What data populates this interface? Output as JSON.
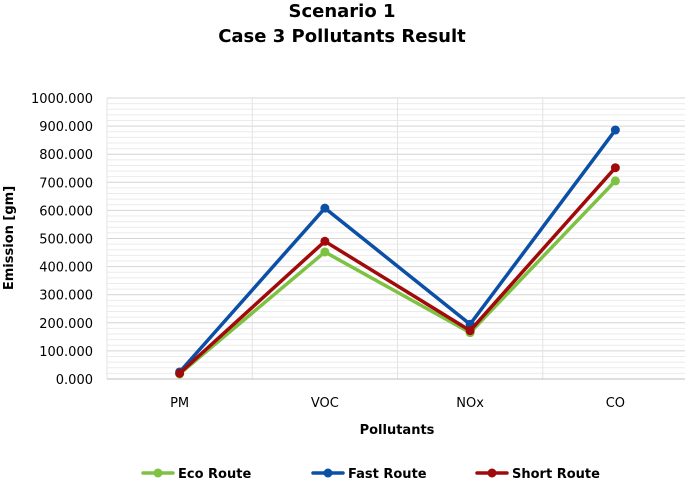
{
  "chart_data": {
    "type": "line",
    "title": "Scenario 1",
    "subtitle": "Case 3 Pollutants Result",
    "xlabel": "Pollutants",
    "ylabel": "Emission [gm]",
    "categories": [
      "PM",
      "VOC",
      "NOx",
      "CO"
    ],
    "ylim": [
      0,
      1000
    ],
    "yticks": [
      "0.000",
      "100.000",
      "200.000",
      "300.000",
      "400.000",
      "500.000",
      "600.000",
      "700.000",
      "800.000",
      "900.000",
      "1000.000"
    ],
    "grid": true,
    "legend_position": "bottom",
    "series": [
      {
        "name": "Eco Route",
        "color": "#7dc242",
        "values": [
          18,
          452,
          165,
          705
        ]
      },
      {
        "name": "Fast Route",
        "color": "#0b4fa6",
        "values": [
          25,
          608,
          195,
          886
        ]
      },
      {
        "name": "Short Route",
        "color": "#a10a0a",
        "values": [
          20,
          490,
          172,
          752
        ]
      }
    ]
  }
}
